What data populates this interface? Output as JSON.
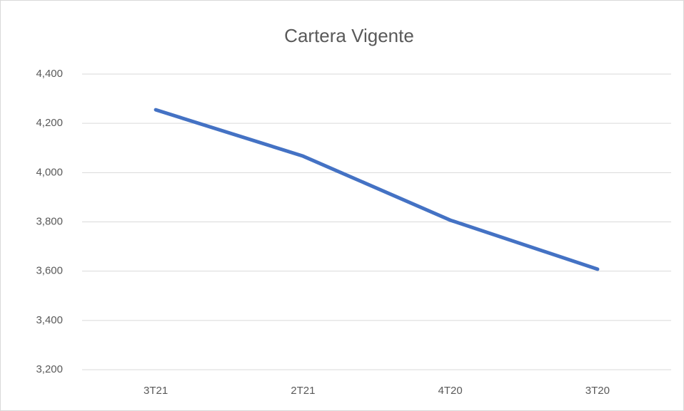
{
  "chart_data": {
    "type": "line",
    "title": "Cartera Vigente",
    "categories": [
      "3T21",
      "2T21",
      "4T20",
      "3T20"
    ],
    "series": [
      {
        "name": "Cartera Vigente",
        "color": "#4472c4",
        "values": [
          4255,
          4067,
          3807,
          3608
        ]
      }
    ],
    "ylim": [
      3200,
      4400
    ],
    "yticks": [
      {
        "value": 3200,
        "label": "3,200"
      },
      {
        "value": 3400,
        "label": "3,400"
      },
      {
        "value": 3600,
        "label": "3,600"
      },
      {
        "value": 3800,
        "label": "3,800"
      },
      {
        "value": 4000,
        "label": "4,000"
      },
      {
        "value": 4200,
        "label": "4,200"
      },
      {
        "value": 4400,
        "label": "4,400"
      }
    ],
    "grid": true
  }
}
